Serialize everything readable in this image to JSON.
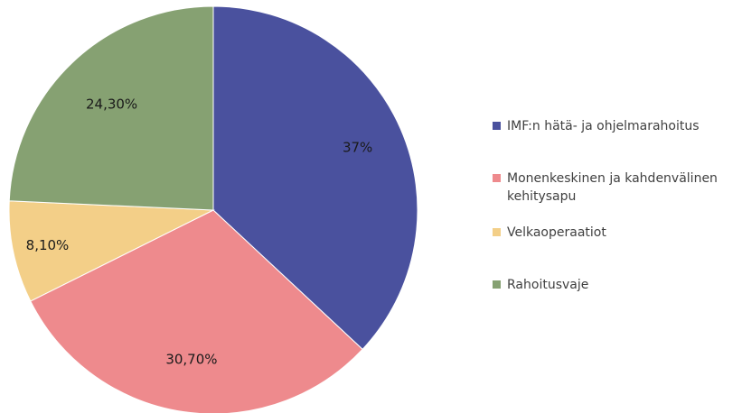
{
  "chart_data": {
    "type": "pie",
    "categories": [
      "IMF:n hätä- ja ohjelmarahoitus",
      "Monenkeskinen ja kahdenvälinen kehitysapu",
      "Velkaoperaatiot",
      "Rahoitusvaje"
    ],
    "values": [
      37,
      30.7,
      8.1,
      24.3
    ],
    "value_labels": [
      "37%",
      "30,70%",
      "8,10%",
      "24,30%"
    ],
    "colors": [
      "#4a519e",
      "#ee8a8d",
      "#f3cf88",
      "#86a172"
    ],
    "start_angle": "12 o'clock",
    "direction": "clockwise",
    "legend_placement": "right"
  }
}
